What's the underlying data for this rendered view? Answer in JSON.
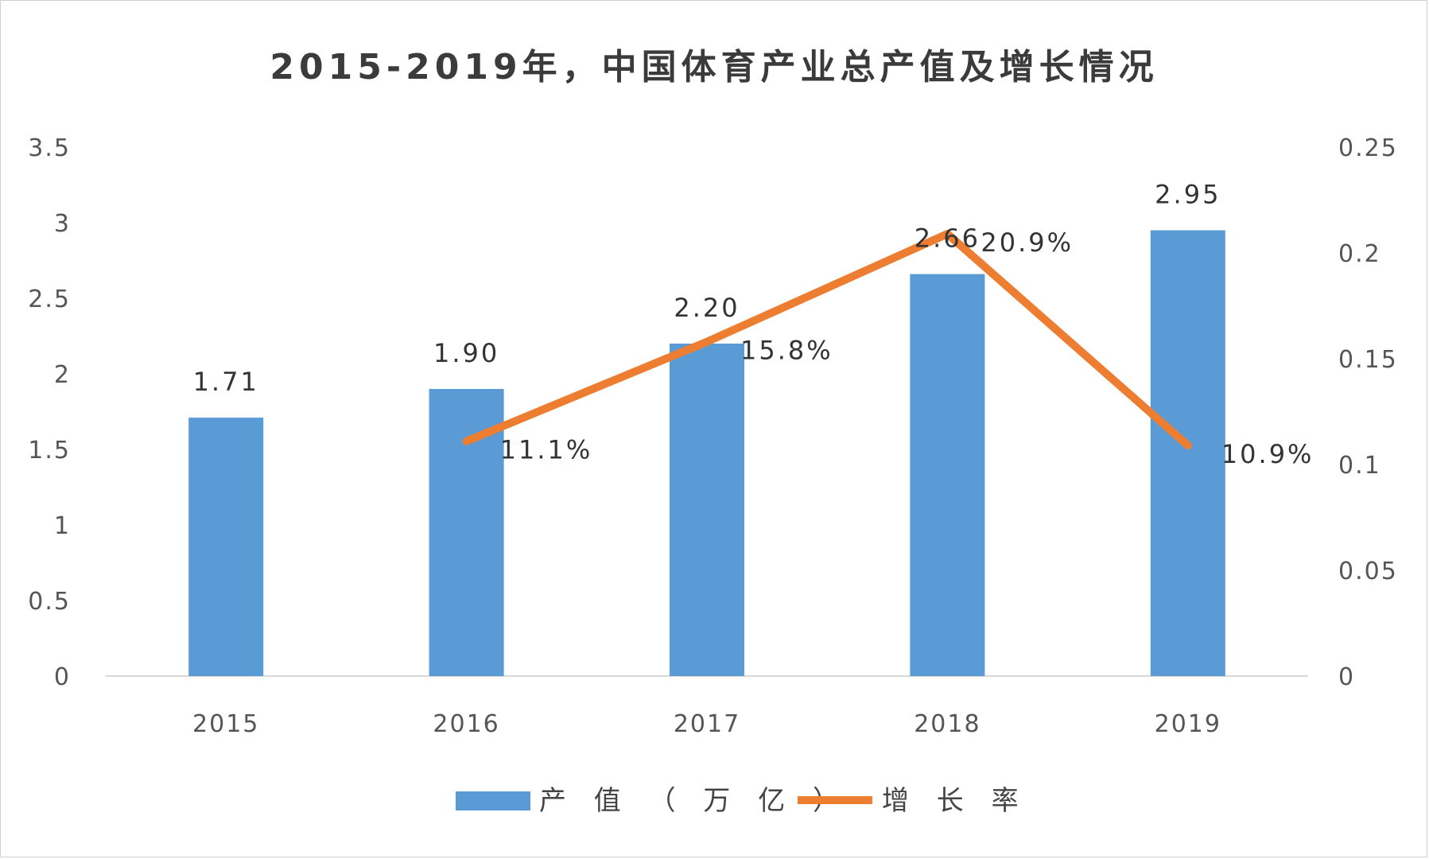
{
  "chart_data": {
    "type": "bar",
    "title": "2015-2019年，中国体育产业总产值及增长情况",
    "categories": [
      "2015",
      "2016",
      "2017",
      "2018",
      "2019"
    ],
    "series": [
      {
        "name": "产值（万亿）",
        "type": "bar",
        "axis": "left",
        "color": "#5b9bd5",
        "values": [
          1.71,
          1.9,
          2.2,
          2.66,
          2.95
        ],
        "labels": [
          "1.71",
          "1.90",
          "2.20",
          "2.66",
          "2.95"
        ]
      },
      {
        "name": "增长率",
        "type": "line",
        "axis": "right",
        "color": "#ed7d31",
        "values": [
          null,
          0.111,
          0.158,
          0.209,
          0.109
        ],
        "labels": [
          "",
          "11.1%",
          "15.8%",
          "20.9%",
          "10.9%"
        ]
      }
    ],
    "y_left": {
      "ylim": [
        0,
        3.5
      ],
      "ticks": [
        "0",
        "0.5",
        "1",
        "1.5",
        "2",
        "2.5",
        "3",
        "3.5"
      ]
    },
    "y_right": {
      "ylim": [
        0,
        0.25
      ],
      "ticks": [
        "0",
        "0.05",
        "0.1",
        "0.15",
        "0.2",
        "0.25"
      ]
    },
    "grid": false,
    "legend": "bottom"
  },
  "legend": {
    "bar_label": "产 值 （ 万 亿 ）",
    "line_label": "增 长 率"
  }
}
